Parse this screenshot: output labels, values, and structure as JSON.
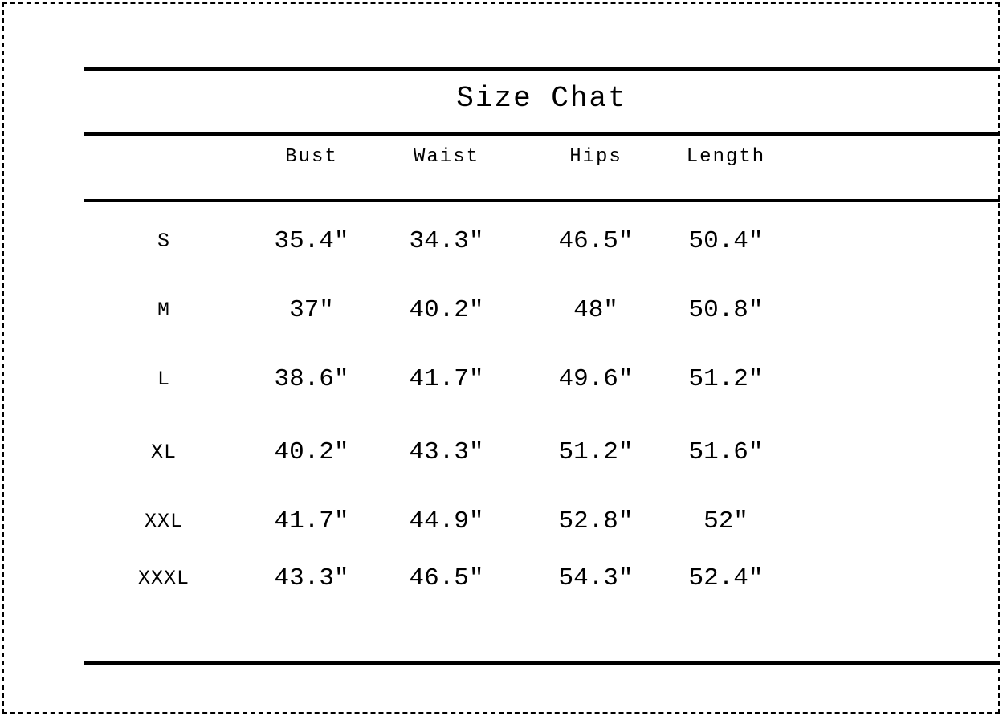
{
  "chart_data": {
    "type": "table",
    "title": "Size Chat",
    "columns": [
      "Bust",
      "Waist",
      "Hips",
      "Length"
    ],
    "header": {
      "size": "",
      "bust": "Bust",
      "waist": "Waist",
      "hips": "Hips",
      "length": "Length"
    },
    "rows": [
      {
        "size": "S",
        "bust": "35.4″",
        "waist": "34.3″",
        "hips": "46.5″",
        "length": "50.4″"
      },
      {
        "size": "M",
        "bust": "37″",
        "waist": "40.2″",
        "hips": "48″",
        "length": "50.8″"
      },
      {
        "size": "L",
        "bust": "38.6″",
        "waist": "41.7″",
        "hips": "49.6″",
        "length": "51.2″"
      },
      {
        "size": "XL",
        "bust": "40.2″",
        "waist": "43.3″",
        "hips": "51.2″",
        "length": "51.6″"
      },
      {
        "size": "XXL",
        "bust": "41.7″",
        "waist": "44.9″",
        "hips": "52.8″",
        "length": "52″"
      },
      {
        "size": "XXXL",
        "bust": "43.3″",
        "waist": "46.5″",
        "hips": "54.3″",
        "length": "52.4″"
      }
    ],
    "layout": {
      "grid": "off",
      "legend": "none",
      "horizontal_rules": 4,
      "outer_border": "dashed"
    }
  },
  "colors": {
    "text": "#000000",
    "background": "#ffffff",
    "rule": "#000000",
    "frame": "#000000"
  }
}
